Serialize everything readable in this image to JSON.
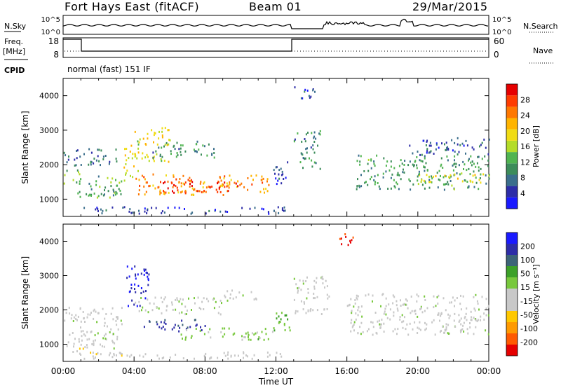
{
  "header": {
    "station": "Fort Hays East (fitACF)",
    "beam": "Beam 01",
    "date": "29/Mar/2015"
  },
  "noise_panel": {
    "left_label": "N.Sky",
    "right_label": "N.Search",
    "y_ticks": [
      "10^5",
      "10^0"
    ]
  },
  "freq_panel": {
    "left_label_1": "Freq.",
    "left_label_2": "[MHz]",
    "y_ticks": [
      "18",
      "8"
    ],
    "right_label": "Nave",
    "right_ticks": [
      "60",
      "0"
    ]
  },
  "cpid_panel": {
    "label": "CPID",
    "text": "normal (fast) 151 IF"
  },
  "colors": {
    "power": [
      "#1a1aff",
      "#2d2da8",
      "#3a6e8c",
      "#3c8c5a",
      "#50b450",
      "#b4dc28",
      "#f0dc14",
      "#ffb400",
      "#ff7800",
      "#ff3c00",
      "#e60000"
    ],
    "velocity": [
      "#e60000",
      "#ff5a00",
      "#ff9a00",
      "#ffc800",
      "#c8c8c8",
      "#c8c8c8",
      "#78c83c",
      "#3ca028",
      "#3c6478",
      "#2d2da8",
      "#1a1aff"
    ]
  },
  "chart_data": [
    {
      "type": "heatmap",
      "name": "power",
      "ylabel": "Slant Range [km]",
      "y_ticks": [
        1000,
        2000,
        3000,
        4000
      ],
      "ylim": [
        500,
        4500
      ],
      "xlim": [
        0,
        24
      ],
      "colorbar_label": "Power [dB]",
      "colorbar_ticks": [
        "4",
        "8",
        "12",
        "16",
        "20",
        "24",
        "28"
      ],
      "clim": [
        0,
        30
      ],
      "blobs": [
        {
          "t0": 0.0,
          "t1": 0.9,
          "r0": 1450,
          "r1": 1900,
          "v": 14
        },
        {
          "t0": 0.8,
          "t1": 3.4,
          "r0": 1000,
          "r1": 1700,
          "v": 11
        },
        {
          "t0": 3.4,
          "t1": 4.2,
          "r0": 1500,
          "r1": 2600,
          "v": 18
        },
        {
          "t0": 4.0,
          "t1": 6.0,
          "r0": 2100,
          "r1": 3100,
          "v": 17
        },
        {
          "t0": 4.2,
          "t1": 11.8,
          "r0": 1150,
          "r1": 1750,
          "v": 22
        },
        {
          "t0": 5.5,
          "t1": 10.0,
          "r0": 1200,
          "r1": 1550,
          "v": 27
        },
        {
          "t0": 5.0,
          "t1": 8.5,
          "r0": 2200,
          "r1": 2700,
          "v": 9
        },
        {
          "t0": 0.0,
          "t1": 3.0,
          "r0": 2000,
          "r1": 2500,
          "v": 7
        },
        {
          "t0": 11.8,
          "t1": 12.8,
          "r0": 1400,
          "r1": 2100,
          "v": 5
        },
        {
          "t0": 13.0,
          "t1": 14.5,
          "r0": 1900,
          "r1": 3000,
          "v": 9
        },
        {
          "t0": 13.0,
          "t1": 14.2,
          "r0": 3900,
          "r1": 4300,
          "v": 5
        },
        {
          "t0": 16.5,
          "t1": 24.0,
          "r0": 1300,
          "r1": 2300,
          "v": 10
        },
        {
          "t0": 20.0,
          "t1": 24.0,
          "r0": 1500,
          "r1": 1800,
          "v": 16
        },
        {
          "t0": 19.5,
          "t1": 24.0,
          "r0": 2300,
          "r1": 2800,
          "v": 6
        },
        {
          "t0": 1.0,
          "t1": 12.5,
          "r0": 600,
          "r1": 800,
          "v": 5
        }
      ]
    },
    {
      "type": "heatmap",
      "name": "velocity",
      "ylabel": "Slant Range [km]",
      "y_ticks": [
        1000,
        2000,
        3000,
        4000
      ],
      "ylim": [
        500,
        4500
      ],
      "xlim": [
        0,
        24
      ],
      "xlabel": "Time UT",
      "x_tick_labels": [
        "00:00",
        "04:00",
        "08:00",
        "12:00",
        "16:00",
        "20:00",
        "00:00"
      ],
      "colorbar_label": "Velocity [m s⁻¹]",
      "colorbar_ticks": [
        "-200",
        "-100",
        "-50",
        "-15",
        "15",
        "50",
        "100",
        "200"
      ],
      "clim": [
        -250,
        250
      ],
      "blobs": [
        {
          "t0": 0.0,
          "t1": 3.3,
          "r0": 900,
          "r1": 2100,
          "v": 0
        },
        {
          "t0": 0.5,
          "t1": 2.0,
          "r0": 700,
          "r1": 1000,
          "v": -60
        },
        {
          "t0": 3.5,
          "t1": 4.8,
          "r0": 2100,
          "r1": 3300,
          "v": 200
        },
        {
          "t0": 4.5,
          "t1": 8.0,
          "r0": 1400,
          "r1": 1750,
          "v": 180
        },
        {
          "t0": 6.5,
          "t1": 11.8,
          "r0": 1150,
          "r1": 1500,
          "v": 40
        },
        {
          "t0": 4.0,
          "t1": 9.0,
          "r0": 1900,
          "r1": 2400,
          "v": 10
        },
        {
          "t0": 9.0,
          "t1": 11.0,
          "r0": 2300,
          "r1": 2600,
          "v": 0
        },
        {
          "t0": 11.8,
          "t1": 12.8,
          "r0": 1400,
          "r1": 2100,
          "v": 60
        },
        {
          "t0": 13.0,
          "t1": 15.0,
          "r0": 1900,
          "r1": 3000,
          "v": 0
        },
        {
          "t0": 15.5,
          "t1": 16.5,
          "r0": 3900,
          "r1": 4300,
          "v": -200
        },
        {
          "t0": 16.0,
          "t1": 24.0,
          "r0": 1300,
          "r1": 2500,
          "v": 0
        },
        {
          "t0": 1.0,
          "t1": 12.5,
          "r0": 600,
          "r1": 800,
          "v": -40
        }
      ]
    }
  ]
}
